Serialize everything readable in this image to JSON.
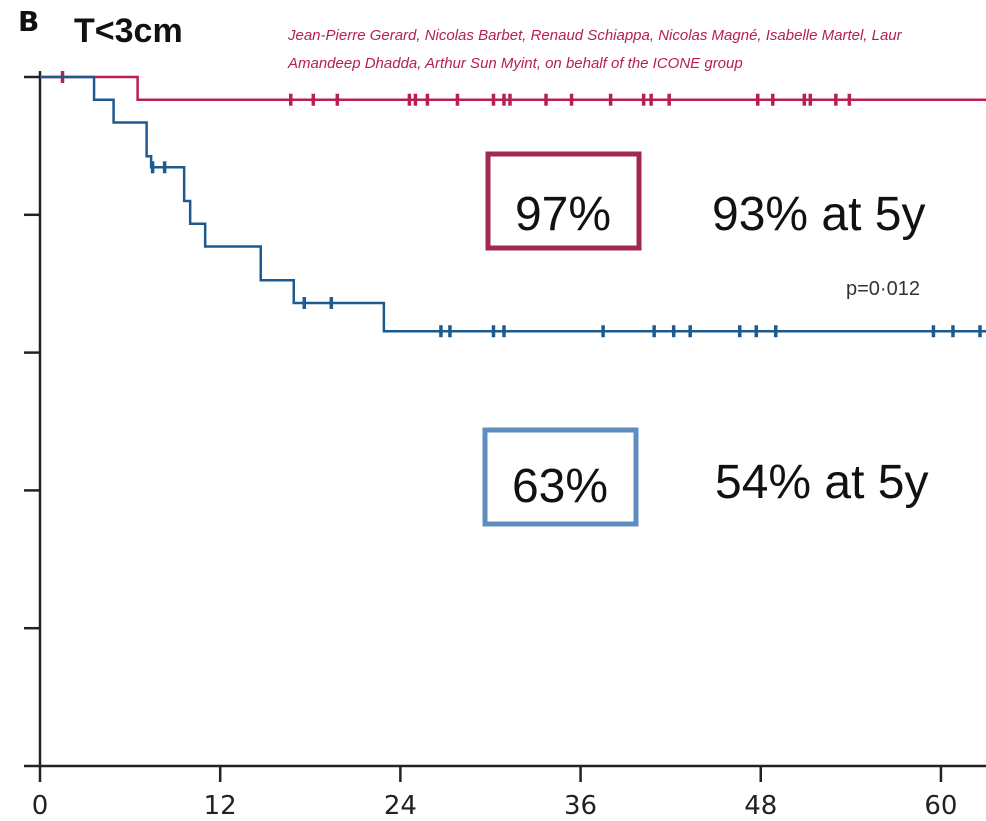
{
  "colors": {
    "series_red": "#b7204f",
    "series_blue": "#1e5a8f",
    "box_red": "#a3284d",
    "box_blue": "#5e8ebd",
    "axis": "#222222"
  },
  "header": {
    "panel_letter": "B",
    "title": "T<3cm",
    "authors_line1": "Jean-Pierre Gerard, Nicolas Barbet, Renaud Schiappa, Nicolas Magné, Isabelle Martel, Laur",
    "authors_line2": "Amandeep Dhadda, Arthur Sun Myint, on behalf of the ICONE group"
  },
  "annotations": {
    "box_red_value": "97%",
    "red_5y": "93% at 5y",
    "pvalue": "p=0·012",
    "box_blue_value": "63%",
    "blue_5y": "54% at 5y"
  },
  "chart_data": {
    "type": "line",
    "title": "T<3cm",
    "xlabel": "",
    "ylabel": "",
    "xlim": [
      0,
      63
    ],
    "ylim": [
      0,
      1
    ],
    "x_ticks": [
      0,
      12,
      24,
      36,
      48,
      60
    ],
    "x_tick_labels": [
      "0",
      "12",
      "24",
      "36",
      "48",
      "60"
    ],
    "y_ticks": [
      0,
      0.2,
      0.4,
      0.6,
      0.8,
      1.0
    ],
    "grid": false,
    "series": [
      {
        "color_key": "series_red",
        "steps": [
          [
            0,
            1.0
          ],
          [
            6.5,
            0.967
          ],
          [
            63,
            0.967
          ]
        ],
        "censor_x": [
          1.5,
          16.7,
          18.2,
          19.8,
          24.6,
          25.0,
          25.8,
          27.8,
          30.2,
          30.9,
          31.3,
          33.7,
          35.4,
          38.0,
          40.2,
          40.7,
          41.9,
          47.8,
          48.8,
          50.9,
          51.3,
          53.0,
          53.9
        ]
      },
      {
        "color_key": "series_blue",
        "steps": [
          [
            0,
            1.0
          ],
          [
            3.6,
            0.967
          ],
          [
            4.9,
            0.934
          ],
          [
            7.1,
            0.885
          ],
          [
            7.4,
            0.869
          ],
          [
            9.6,
            0.82
          ],
          [
            10.0,
            0.787
          ],
          [
            11.0,
            0.754
          ],
          [
            14.7,
            0.705
          ],
          [
            16.9,
            0.672
          ],
          [
            22.9,
            0.631
          ],
          [
            63,
            0.631
          ]
        ],
        "censor_x": [
          7.5,
          8.3,
          17.6,
          19.4,
          26.7,
          27.3,
          30.2,
          30.9,
          37.5,
          40.9,
          42.2,
          43.3,
          46.6,
          47.7,
          49.0,
          59.5,
          60.8,
          62.6
        ]
      }
    ]
  }
}
